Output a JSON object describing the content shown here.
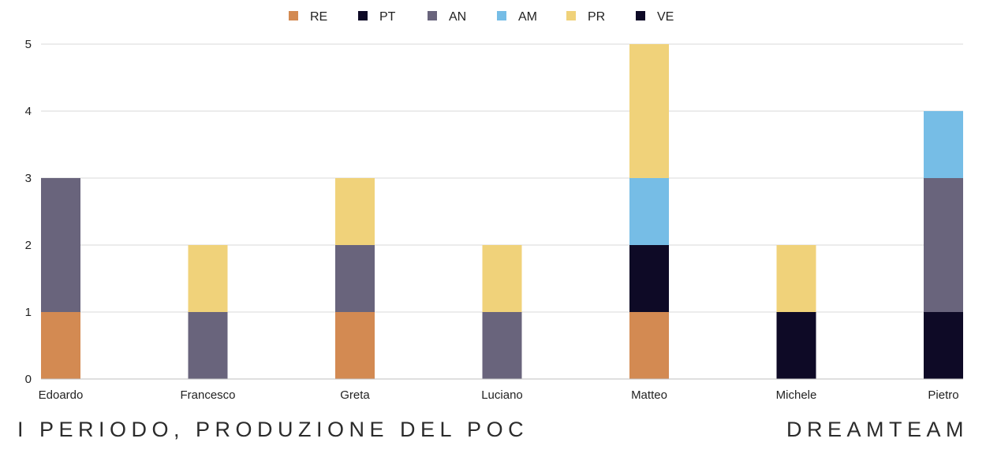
{
  "chart_data": {
    "type": "bar",
    "stacked": true,
    "categories": [
      "Edoardo",
      "Francesco",
      "Greta",
      "Luciano",
      "Matteo",
      "Michele",
      "Pietro"
    ],
    "series": [
      {
        "name": "RE",
        "color": "#d38a52",
        "values": [
          1,
          0,
          1,
          0,
          1,
          0,
          0
        ]
      },
      {
        "name": "PT",
        "color": "#0e0a26",
        "values": [
          0,
          0,
          0,
          0,
          1,
          1,
          1
        ]
      },
      {
        "name": "AN",
        "color": "#69647c",
        "values": [
          2,
          1,
          1,
          1,
          0,
          0,
          2
        ]
      },
      {
        "name": "AM",
        "color": "#76bde6",
        "values": [
          0,
          0,
          0,
          0,
          1,
          0,
          1
        ]
      },
      {
        "name": "PR",
        "color": "#f0d27a",
        "values": [
          0,
          1,
          1,
          1,
          2,
          1,
          0
        ]
      },
      {
        "name": "VE",
        "color": "#0e0a26",
        "values": [
          0,
          0,
          0,
          0,
          0,
          0,
          0
        ]
      }
    ],
    "ylim": [
      0,
      5
    ],
    "yticks": [
      "0",
      "1",
      "2",
      "3",
      "4",
      "5"
    ],
    "grid": true,
    "legend": "top-center"
  },
  "footer": {
    "left": "I PERIODO, PRODUZIONE DEL POC",
    "right": "DREAMTEAM"
  }
}
